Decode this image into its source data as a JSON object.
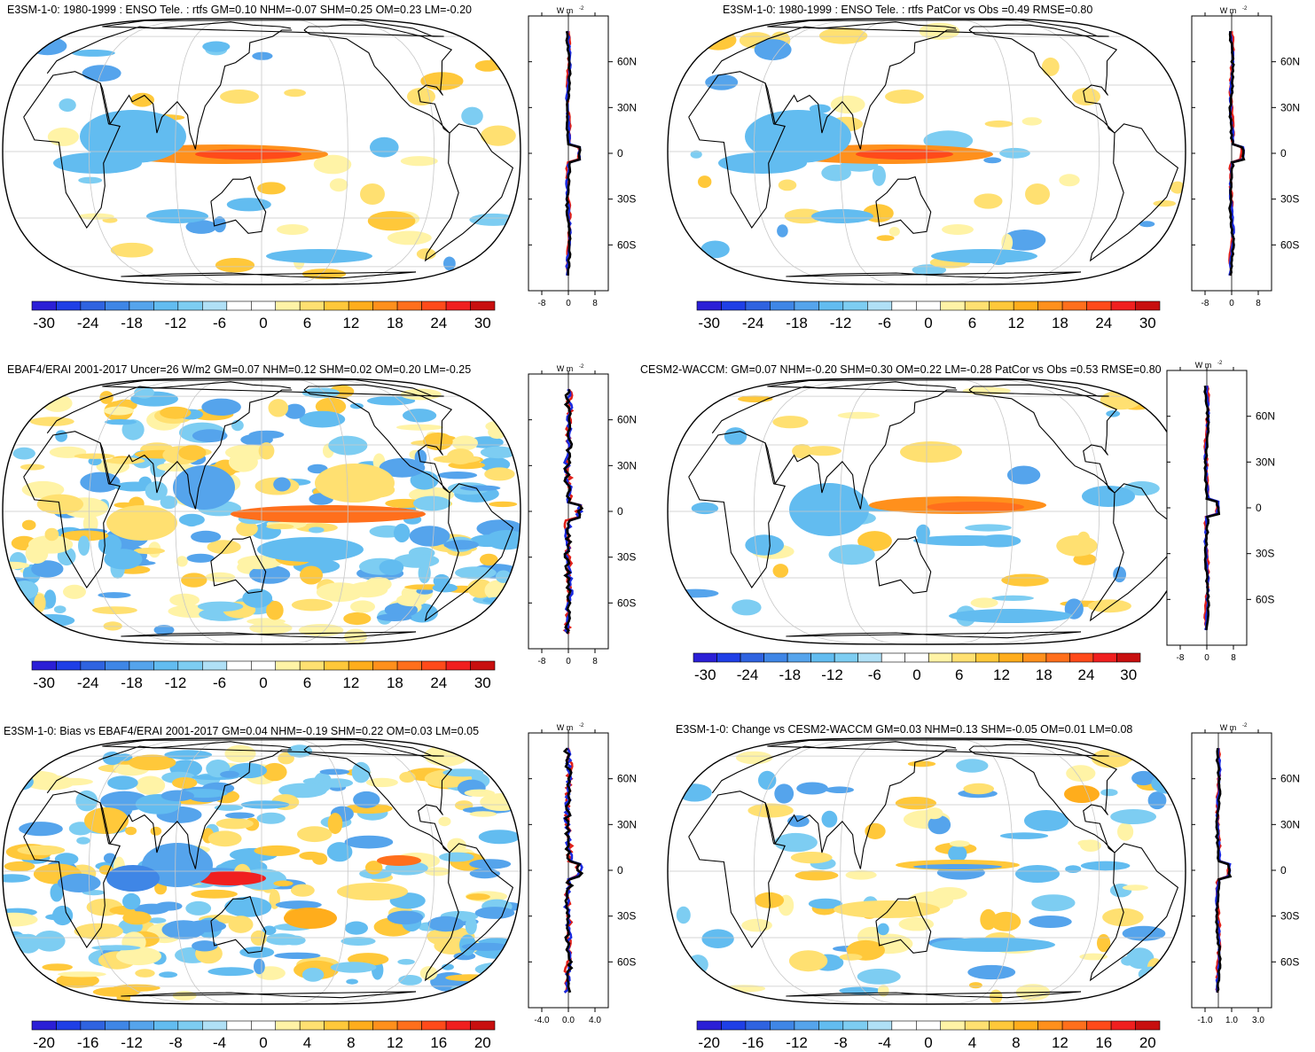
{
  "colorbar_colors": [
    "#2b1fd6",
    "#1f3fe6",
    "#2f63e0",
    "#3f86e6",
    "#55a4ec",
    "#62bcf0",
    "#7dcdf2",
    "#b0e0f6",
    "#ffffff",
    "#ffffff",
    "#fff3a6",
    "#ffe071",
    "#ffc83a",
    "#ffad1c",
    "#ff901c",
    "#ff6f1c",
    "#ff4a1a",
    "#f01f1f",
    "#c80f0f"
  ],
  "panels": [
    {
      "id": "p1",
      "title": "E3SM-1-0: 1980-1999 : ENSO Tele. : rtfs GM=0.10 NHM=-0.07 SHM=0.25 OM=0.23 LM=-0.20"
    },
    {
      "id": "p2",
      "title": "E3SM-1-0: 1980-1999 : ENSO Tele. : rtfs PatCor vs Obs =0.49 RMSE=0.80"
    },
    {
      "id": "p3",
      "title": "EBAF4/ERAI 2001-2017 Uncer=26 W/m2 GM=0.07 NHM=0.12 SHM=0.02 OM=0.20 LM=-0.25"
    },
    {
      "id": "p4",
      "title": "CESM2-WACCM: GM=0.07 NHM=-0.20 SHM=0.30 OM=0.22 LM=-0.28 PatCor vs Obs =0.53 RMSE=0.80"
    },
    {
      "id": "p5",
      "title": "E3SM-1-0: Bias vs EBAF4/ERAI 2001-2017 GM=0.04 NHM=-0.19 SHM=0.22 OM=0.03 LM=0.05"
    },
    {
      "id": "p6",
      "title": "E3SM-1-0: Change vs CESM2-WACCM GM=0.03 NHM=0.13 SHM=-0.05 OM=0.01 LM=0.08"
    }
  ],
  "chart_data": [
    {
      "type": "heatmap",
      "panel": "p1",
      "colorbar_ticks": [
        "-30",
        "-24",
        "-18",
        "-12",
        "-6",
        "0",
        "6",
        "12",
        "18",
        "24",
        "30"
      ],
      "zonal_units": "W m",
      "zonal_units_exp": "-2",
      "zonal_xticks": [
        "-8",
        "0",
        "8"
      ],
      "zonal_xlim": [
        -12,
        12
      ],
      "zonal_yticks": [
        "60N",
        "30N",
        "0",
        "30S",
        "60S"
      ]
    },
    {
      "type": "heatmap",
      "panel": "p2",
      "colorbar_ticks": [
        "-30",
        "-24",
        "-18",
        "-12",
        "-6",
        "0",
        "6",
        "12",
        "18",
        "24",
        "30"
      ],
      "zonal_units": "W m",
      "zonal_units_exp": "-2",
      "zonal_xticks": [
        "-8",
        "0",
        "8"
      ],
      "zonal_xlim": [
        -12,
        12
      ],
      "zonal_yticks": [
        "60N",
        "30N",
        "0",
        "30S",
        "60S"
      ]
    },
    {
      "type": "heatmap",
      "panel": "p3",
      "colorbar_ticks": [
        "-30",
        "-24",
        "-18",
        "-12",
        "-6",
        "0",
        "6",
        "12",
        "18",
        "24",
        "30"
      ],
      "zonal_units": "W m",
      "zonal_units_exp": "-2",
      "zonal_xticks": [
        "-8",
        "0",
        "8"
      ],
      "zonal_xlim": [
        -12,
        12
      ],
      "zonal_yticks": [
        "60N",
        "30N",
        "0",
        "30S",
        "60S"
      ]
    },
    {
      "type": "heatmap",
      "panel": "p4",
      "colorbar_ticks": [
        "-30",
        "-24",
        "-18",
        "-12",
        "-6",
        "0",
        "6",
        "12",
        "18",
        "24",
        "30"
      ],
      "zonal_units": "W m",
      "zonal_units_exp": "-2",
      "zonal_xticks": [
        "-8",
        "0",
        "8"
      ],
      "zonal_xlim": [
        -12,
        12
      ],
      "zonal_yticks": [
        "60N",
        "30N",
        "0",
        "30S",
        "60S"
      ]
    },
    {
      "type": "heatmap",
      "panel": "p5",
      "colorbar_ticks": [
        "-20",
        "-16",
        "-12",
        "-8",
        "-4",
        "0",
        "4",
        "8",
        "12",
        "16",
        "20"
      ],
      "zonal_units": "W m",
      "zonal_units_exp": "-2",
      "zonal_xticks": [
        "-4.0",
        "0.0",
        "4.0"
      ],
      "zonal_xlim": [
        -6,
        6
      ],
      "zonal_yticks": [
        "60N",
        "30N",
        "0",
        "30S",
        "60S"
      ]
    },
    {
      "type": "heatmap",
      "panel": "p6",
      "colorbar_ticks": [
        "-20",
        "-16",
        "-12",
        "-8",
        "-4",
        "0",
        "4",
        "8",
        "12",
        "16",
        "20"
      ],
      "zonal_units": "W m",
      "zonal_units_exp": "-2",
      "zonal_xticks": [
        "-1.0",
        "1.0",
        "3.0"
      ],
      "zonal_xlim": [
        -2,
        4
      ],
      "zonal_yticks": [
        "60N",
        "30N",
        "0",
        "30S",
        "60S"
      ]
    }
  ]
}
